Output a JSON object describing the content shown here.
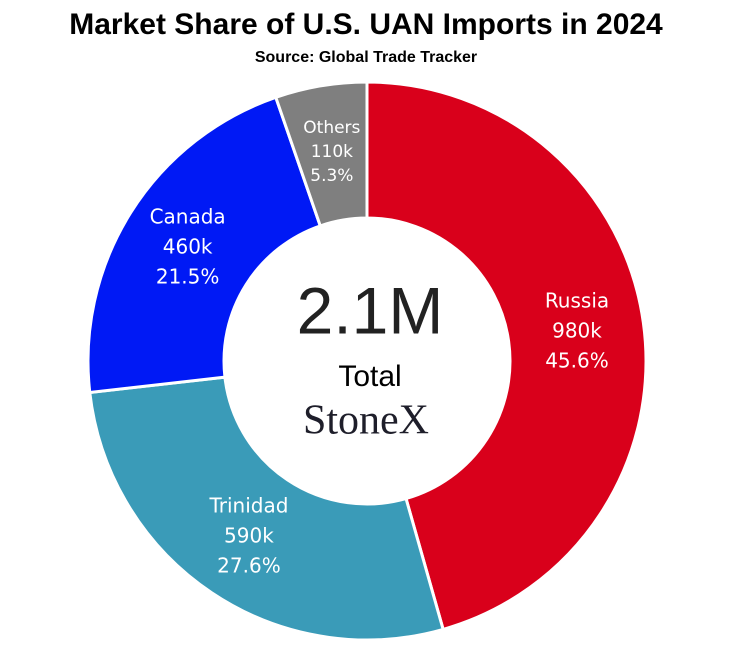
{
  "chart_data": {
    "type": "donut",
    "title": "Market Share of U.S. UAN Imports in 2024",
    "subtitle": "Source: Global Trade Tracker",
    "categories": [
      "Russia",
      "Trinidad",
      "Canada",
      "Others"
    ],
    "values": [
      45.6,
      27.6,
      21.5,
      5.3
    ],
    "value_labels": [
      "45.6%",
      "27.6%",
      "21.5%",
      "5.3%"
    ],
    "amount_labels": [
      "980k",
      "590k",
      "460k",
      "110k"
    ],
    "colors": [
      "#d9001b",
      "#3a9bb8",
      "#0019f5",
      "#7f7f7f"
    ],
    "center_value": "2.1M",
    "center_label": "Total",
    "logo": "StoneX"
  }
}
